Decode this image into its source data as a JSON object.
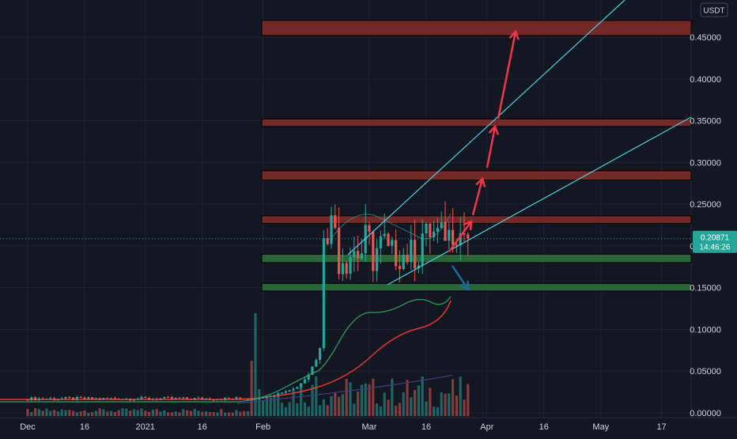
{
  "app": {
    "currency_label": "USDT"
  },
  "colors": {
    "background": "#131722",
    "grid": "#1f2330",
    "up": "#26a69a",
    "down": "#ef5350",
    "resistance_fill": "#7a2a2a",
    "support_fill": "#2a6a3a",
    "trendline": "#4dd0e1",
    "arrow_up": "#f23645",
    "arrow_down": "#1e6aa0",
    "ma_red": "#e53935",
    "ma_green": "#2e8b57",
    "ma_navy": "#3a3f7a",
    "price_tag": "#26a69a"
  },
  "price_tag": {
    "price": "0.20871",
    "countdown": "14:46:26"
  },
  "chart_data": {
    "type": "candlestick",
    "y_tick_labels": [
      "0.45000",
      "0.40000",
      "0.35000",
      "0.30000",
      "0.25000",
      "0.20000",
      "0.15000",
      "0.10000",
      "0.05000",
      "0.00000"
    ],
    "y_tick_values": [
      0.45,
      0.4,
      0.35,
      0.3,
      0.25,
      0.2,
      0.15,
      0.1,
      0.05,
      0.0
    ],
    "ylim": [
      0.0,
      0.475
    ],
    "x_tick_labels": [
      "Dec",
      "16",
      "2021",
      "16",
      "Feb",
      "Mar",
      "16",
      "Apr",
      "16",
      "May",
      "17"
    ],
    "x_tick_dates": [
      "2020-12-01",
      "2020-12-16",
      "2021-01-01",
      "2021-01-16",
      "2021-02-01",
      "2021-03-01",
      "2021-03-16",
      "2021-04-01",
      "2021-04-16",
      "2021-05-01",
      "2021-05-17"
    ],
    "current_price": 0.20871,
    "resistance_zones": [
      {
        "from": 0.452,
        "to": 0.47
      },
      {
        "from": 0.343,
        "to": 0.352
      },
      {
        "from": 0.279,
        "to": 0.29
      },
      {
        "from": 0.227,
        "to": 0.236
      },
      {
        "from": 0.18,
        "to": 0.19
      }
    ],
    "support_zones": [
      {
        "from": 0.18,
        "to": 0.19
      },
      {
        "from": 0.146,
        "to": 0.155
      }
    ]
  }
}
